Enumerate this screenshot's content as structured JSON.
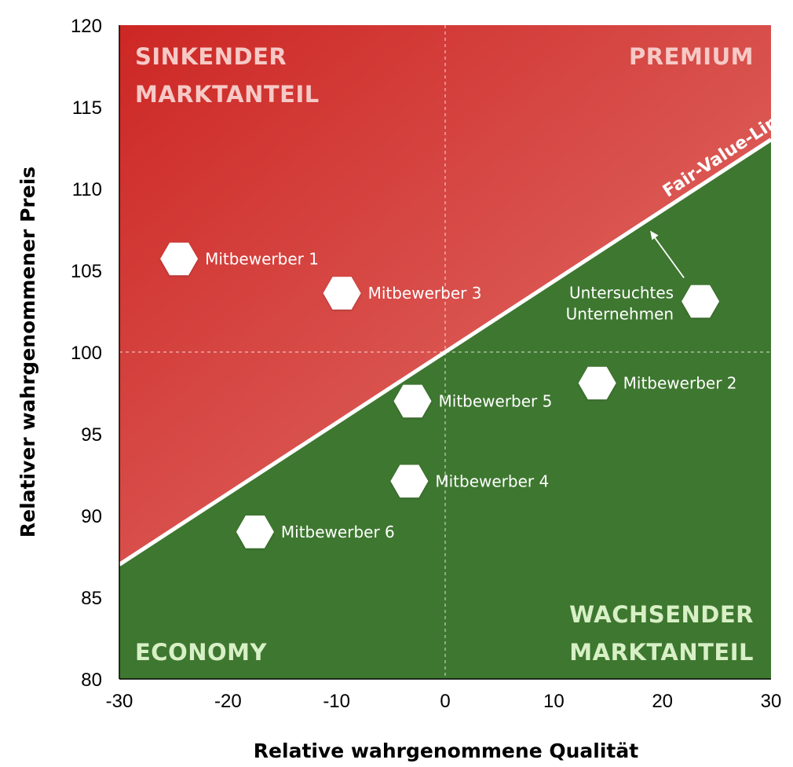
{
  "chart_data": {
    "type": "scatter",
    "xlabel": "Relative wahrgenommene Qualität",
    "ylabel": "Relativer wahrgenommener Preis",
    "xlim": [
      -30,
      30
    ],
    "ylim": [
      80,
      120
    ],
    "x_ticks": [
      -30,
      -20,
      -10,
      0,
      10,
      20,
      30
    ],
    "y_ticks": [
      80,
      85,
      90,
      95,
      100,
      105,
      110,
      115,
      120
    ],
    "reference_lines": {
      "x": 0,
      "y": 100,
      "style": "dashed"
    },
    "fair_value_line": {
      "label": "Fair-Value-Linie",
      "points": [
        [
          -30,
          87
        ],
        [
          30,
          113
        ]
      ]
    },
    "quadrant_labels": {
      "top_left": [
        "SINKENDER",
        "MARKTANTEIL"
      ],
      "top_right": [
        "PREMIUM"
      ],
      "bottom_left": [
        "ECONOMY"
      ],
      "bottom_right": [
        "WACHSENDER",
        "MARKTANTEIL"
      ]
    },
    "regions": {
      "above_line": "red gradient",
      "below_line": "green"
    },
    "points": [
      {
        "label": "Mitbewerber 1",
        "x": -24.5,
        "y": 105.7
      },
      {
        "label": "Mitbewerber 3",
        "x": -9.5,
        "y": 103.6
      },
      {
        "label": "Untersuchtes Unternehmen",
        "lines": [
          "Untersuchtes",
          "Unternehmen"
        ],
        "x": 23.5,
        "y": 103.1
      },
      {
        "label": "Mitbewerber 2",
        "x": 14,
        "y": 98.1
      },
      {
        "label": "Mitbewerber 5",
        "x": -3,
        "y": 97
      },
      {
        "label": "Mitbewerber 4",
        "x": -3.3,
        "y": 92.1
      },
      {
        "label": "Mitbewerber 6",
        "x": -17.5,
        "y": 89
      }
    ],
    "annotation": {
      "type": "arrow",
      "from_point": "Untersuchtes Unternehmen",
      "to": "Fair-Value-Linie"
    }
  },
  "colors": {
    "red_dark": "#cf2a26",
    "red_light": "#e06a66",
    "green": "#3e7730",
    "label_light_red": "#f6c9c6",
    "label_light_green": "#d8f0c6",
    "white": "#ffffff"
  }
}
